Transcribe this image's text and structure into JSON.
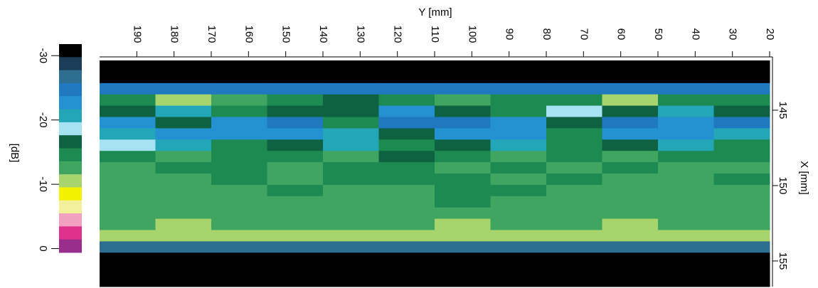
{
  "chart_data": {
    "type": "heatmap",
    "xlabel": "Y [mm]",
    "ylabel": "X [mm]",
    "colorbar_label": "[dB]",
    "xlim": [
      200,
      20
    ],
    "xticks": [
      190,
      180,
      170,
      160,
      150,
      140,
      130,
      120,
      110,
      100,
      90,
      80,
      70,
      60,
      50,
      40,
      30,
      20
    ],
    "ylim": [
      141.7,
      156.7
    ],
    "yticks": [
      145,
      150,
      155
    ],
    "clim": [
      -31.8,
      0.6
    ],
    "cticks": [
      -30,
      -20,
      -10,
      0
    ],
    "colors": [
      "#000000",
      "#1c3d58",
      "#2e6e90",
      "#1f78c0",
      "#2492d2",
      "#22a6b8",
      "#a6e2f2",
      "#0e6242",
      "#1d8a52",
      "#3fa560",
      "#a8d46e",
      "#f2f200",
      "#f2f09a",
      "#f2a0c0",
      "#e0308e",
      "#9a2e8c"
    ],
    "x": [
      192.5,
      177.5,
      162.5,
      147.5,
      132.5,
      117.5,
      102.5,
      87.5,
      72.5,
      57.5,
      42.5,
      27.5
    ],
    "y": [
      142.075,
      142.825,
      143.575,
      144.325,
      145.075,
      145.825,
      146.575,
      147.325,
      148.075,
      148.825,
      149.575,
      150.325,
      151.075,
      151.825,
      152.575,
      153.325,
      154.075,
      154.825,
      155.575,
      156.325
    ],
    "z": [
      [
        -31,
        -31,
        -31,
        -31,
        -31,
        -31,
        -31,
        -31,
        -31,
        -31,
        -31,
        -31
      ],
      [
        -31,
        -31,
        -31,
        -31,
        -31,
        -31,
        -31,
        -31,
        -31,
        -31,
        -31,
        -31
      ],
      [
        -25,
        -25,
        -25,
        -25,
        -25,
        -25,
        -25,
        -25,
        -25,
        -25,
        -25,
        -25
      ],
      [
        -14,
        -11,
        -13,
        -14,
        -16,
        -14,
        -13,
        -15,
        -14,
        -11,
        -14,
        -15
      ],
      [
        -17,
        -20,
        -15,
        -16,
        -17,
        -22,
        -16,
        -15,
        -18,
        -16,
        -20,
        -17
      ],
      [
        -23,
        -16,
        -23,
        -24,
        -15,
        -24,
        -25,
        -23,
        -16,
        -24,
        -23,
        -24
      ],
      [
        -21,
        -22,
        -23,
        -22,
        -21,
        -16,
        -23,
        -22,
        -15,
        -23,
        -22,
        -21
      ],
      [
        -18,
        -21,
        -15,
        -16,
        -20,
        -15,
        -16,
        -20,
        -15,
        -16,
        -20,
        -15
      ],
      [
        -14,
        -13,
        -15,
        -14,
        -13,
        -16,
        -15,
        -13,
        -14,
        -13,
        -14,
        -15
      ],
      [
        -13,
        -14,
        -14,
        -13,
        -15,
        -15,
        -13,
        -14,
        -13,
        -14,
        -13,
        -13
      ],
      [
        -13,
        -13,
        -14,
        -13,
        -14,
        -14,
        -15,
        -13,
        -14,
        -13,
        -13,
        -14
      ],
      [
        -13,
        -12,
        -13,
        -14,
        -13,
        -13,
        -14,
        -15,
        -13,
        -13,
        -12,
        -13
      ],
      [
        -12,
        -13,
        -13,
        -13,
        -12,
        -13,
        -14,
        -13,
        -13,
        -12,
        -13,
        -13
      ],
      [
        -12,
        -12,
        -13,
        -12,
        -13,
        -13,
        -13,
        -12,
        -12,
        -12,
        -12,
        -13
      ],
      [
        -12,
        -11,
        -12,
        -13,
        -12,
        -12,
        -11,
        -12,
        -12,
        -11,
        -12,
        -12
      ],
      [
        -10,
        -10,
        -11,
        -10,
        -11,
        -11,
        -11,
        -10,
        -10,
        -10,
        -10,
        -11
      ],
      [
        -26,
        -26,
        -26,
        -26,
        -26,
        -26,
        -26,
        -26,
        -26,
        -26,
        -26,
        -26
      ],
      [
        -31,
        -31,
        -31,
        -31,
        -31,
        -31,
        -31,
        -31,
        -31,
        -31,
        -31,
        -31
      ],
      [
        -31,
        -31,
        -31,
        -31,
        -31,
        -31,
        -31,
        -31,
        -31,
        -31,
        -31,
        -31
      ],
      [
        -31,
        -31,
        -31,
        -31,
        -31,
        -31,
        -31,
        -31,
        -31,
        -31,
        -31,
        -31
      ]
    ]
  }
}
